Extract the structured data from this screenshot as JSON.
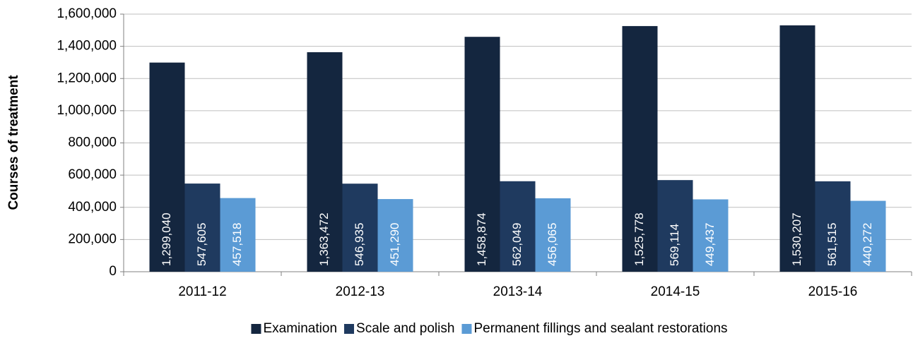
{
  "chart_data": {
    "type": "bar",
    "y_label": "Courses of treatment",
    "categories": [
      "2011-12",
      "2012-13",
      "2013-14",
      "2014-15",
      "2015-16"
    ],
    "series": [
      {
        "name": "Examination",
        "color": "#14263f",
        "values": [
          1299040,
          1363472,
          1458874,
          1525778,
          1530207
        ],
        "value_labels": [
          "1,299,040",
          "1,363,472",
          "1,458,874",
          "1,525,778",
          "1,530,207"
        ]
      },
      {
        "name": "Scale and polish",
        "color": "#1f3a5f",
        "values": [
          547605,
          546935,
          562049,
          569114,
          561515
        ],
        "value_labels": [
          "547,605",
          "546,935",
          "562,049",
          "569,114",
          "561,515"
        ]
      },
      {
        "name": "Permanent fillings and sealant restorations",
        "color": "#5b9bd5",
        "values": [
          457518,
          451290,
          456065,
          449437,
          440272
        ],
        "value_labels": [
          "457,518",
          "451,290",
          "456,065",
          "449,437",
          "440,272"
        ]
      }
    ],
    "ylim": [
      0,
      1600000
    ],
    "yticks": [
      0,
      {
        "value": 200000,
        "label": "200,000"
      },
      {
        "value": 400000,
        "label": "400,000"
      },
      {
        "value": 600000,
        "label": "600,000"
      },
      {
        "value": 800000,
        "label": "800,000"
      },
      {
        "value": 1000000,
        "label": "1,000,000"
      },
      {
        "value": 1200000,
        "label": "1,200,000"
      },
      {
        "value": 1400000,
        "label": "1,400,000"
      },
      {
        "value": 1600000,
        "label": "1,600,000"
      }
    ],
    "grid": true,
    "legend": "bottom"
  }
}
